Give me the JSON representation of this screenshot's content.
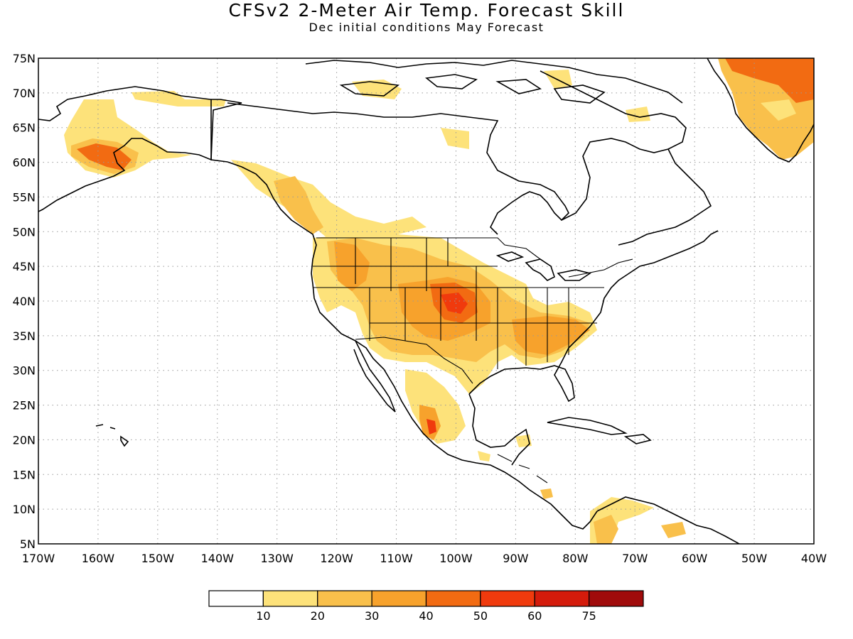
{
  "title": "CFSv2 2-Meter Air Temp. Forecast Skill",
  "subtitle": "Dec initial conditions   May Forecast",
  "map": {
    "lon_range": [
      -170,
      -40
    ],
    "lat_range": [
      5,
      75
    ],
    "lat_labels": [
      "75N",
      "70N",
      "65N",
      "60N",
      "55N",
      "50N",
      "45N",
      "40N",
      "35N",
      "30N",
      "25N",
      "20N",
      "15N",
      "10N",
      "5N"
    ],
    "lon_labels": [
      "170W",
      "160W",
      "150W",
      "140W",
      "130W",
      "120W",
      "110W",
      "100W",
      "90W",
      "80W",
      "70W",
      "60W",
      "50W",
      "40W"
    ]
  },
  "colorbar": {
    "labels": [
      "10",
      "20",
      "30",
      "40",
      "50",
      "60",
      "75"
    ],
    "colors": [
      "#ffffff",
      "#fde27a",
      "#f9c04b",
      "#f7a22c",
      "#f26b12",
      "#f03a0d",
      "#d41b0b",
      "#a00b0b"
    ]
  }
}
